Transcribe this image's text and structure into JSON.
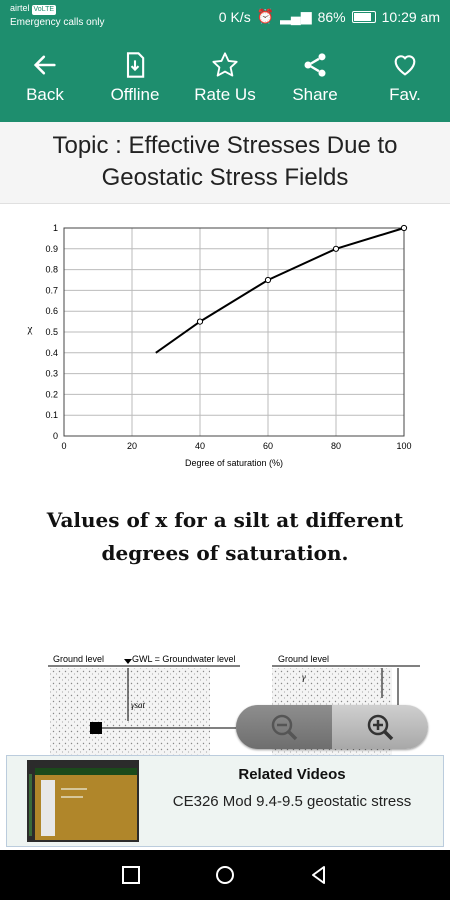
{
  "status": {
    "carrier": "airtel",
    "volte": "VoLTE",
    "emergency": "Emergency calls only",
    "speed": "0 K/s",
    "battery": "86%",
    "time": "10:29 am"
  },
  "toolbar": {
    "back": "Back",
    "offline": "Offline",
    "rate": "Rate Us",
    "share": "Share",
    "fav": "Fav."
  },
  "topic": {
    "line1": "Topic : Effective Stresses Due to",
    "line2": "Geostatic Stress Fields"
  },
  "chart_data": {
    "type": "line",
    "x": [
      27,
      40,
      60,
      80,
      100
    ],
    "y": [
      0.4,
      0.55,
      0.75,
      0.9,
      1.0
    ],
    "marked_points": [
      [
        40,
        0.55
      ],
      [
        60,
        0.75
      ],
      [
        80,
        0.9
      ],
      [
        100,
        1.0
      ]
    ],
    "xlabel": "Degree of saturation (%)",
    "ylabel": "χ",
    "xlim": [
      0,
      100
    ],
    "ylim": [
      0,
      1
    ],
    "xticks": [
      "0",
      "20",
      "40",
      "60",
      "80",
      "100"
    ],
    "yticks": [
      "0",
      "0.1",
      "0.2",
      "0.3",
      "0.4",
      "0.5",
      "0.6",
      "0.7",
      "0.8",
      "0.9",
      "1"
    ],
    "grid": true
  },
  "caption": {
    "line1": "Values of x for a silt at different",
    "line2": "degrees of saturation."
  },
  "diagram": {
    "left_label": "Ground level",
    "gwl_label": "GWL = Groundwater level",
    "right_label": "Ground level",
    "gamma_sat": "γsat",
    "gamma": "γ"
  },
  "related": {
    "title": "Related Videos",
    "video": "CE326 Mod 9.4-9.5 geostatic stress"
  }
}
